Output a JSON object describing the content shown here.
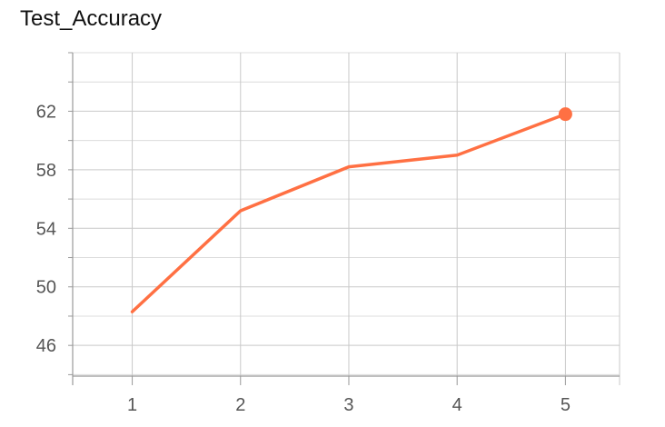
{
  "chart_data": {
    "type": "line",
    "title": "Test_Accuracy",
    "xlabel": "",
    "ylabel": "",
    "x": [
      1,
      2,
      3,
      4,
      5
    ],
    "series": [
      {
        "values": [
          48.3,
          55.2,
          58.2,
          59.0,
          61.8
        ],
        "color": "#ff7043"
      }
    ],
    "xticks": [
      1,
      2,
      3,
      4,
      5
    ],
    "yticks": [
      46,
      50,
      54,
      58,
      62
    ],
    "xlim": [
      0.45,
      5.5
    ],
    "ylim": [
      43.9,
      66.0
    ],
    "grid": true,
    "last_point_marker": true
  }
}
